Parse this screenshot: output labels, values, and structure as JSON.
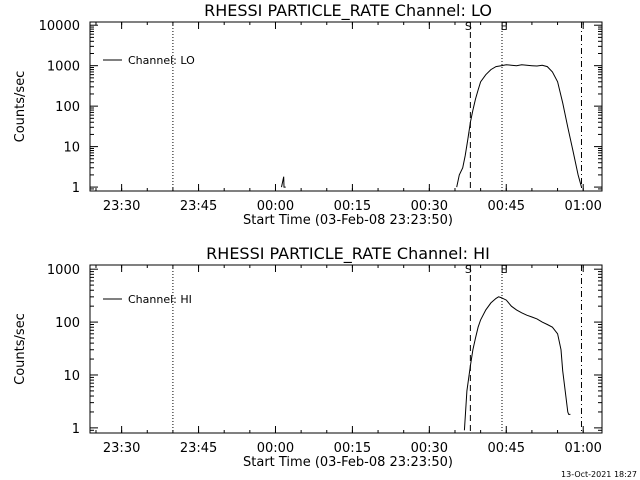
{
  "chart_data": [
    {
      "type": "line",
      "title": "RHESSI PARTICLE_RATE Channel: LO",
      "xlabel": "Start Time (03-Feb-08 23:23:50)",
      "ylabel": "Counts/sec",
      "yscale": "log",
      "ylim": [
        0.8,
        12000
      ],
      "xlim": [
        "23:23:50",
        "01:03:40"
      ],
      "x_ticks": [
        "23:30",
        "23:45",
        "00:00",
        "00:15",
        "00:30",
        "00:45",
        "01:00"
      ],
      "y_ticks": [
        "1",
        "10",
        "100",
        "1000",
        "10000"
      ],
      "grid": false,
      "legend": {
        "position": "top-left",
        "entries": [
          "Channel: LO"
        ]
      },
      "series": [
        {
          "name": "Channel: LO",
          "x": [
            "00:01:10",
            "00:01:36",
            "00:01:40",
            "00:02:00",
            "00:35:20",
            "00:35:50",
            "00:36:30",
            "00:37:00",
            "00:37:30",
            "00:38:00",
            "00:38:30",
            "00:39:00",
            "00:39:30",
            "00:40:00",
            "00:41:00",
            "00:42:00",
            "00:43:00",
            "00:44:00",
            "00:45:00",
            "00:46:00",
            "00:47:00",
            "00:48:00",
            "00:49:00",
            "00:50:00",
            "00:51:00",
            "00:52:00",
            "00:53:00",
            "00:54:00",
            "00:55:00",
            "00:56:00",
            "00:57:00",
            "00:58:00",
            "00:59:00",
            "00:59:40"
          ],
          "y": [
            1,
            1.8,
            1,
            1,
            1,
            2,
            3,
            6,
            15,
            40,
            80,
            150,
            250,
            400,
            600,
            800,
            950,
            1000,
            1050,
            1030,
            1000,
            1050,
            1020,
            1000,
            980,
            1020,
            950,
            700,
            400,
            120,
            30,
            8,
            2,
            1
          ]
        }
      ],
      "markers": [
        {
          "label": "",
          "x": "23:40:00",
          "style": "dotted"
        },
        {
          "label": "S",
          "x": "00:38:00",
          "style": "dashed"
        },
        {
          "label": "E",
          "x": "00:44:10",
          "style": "dotted"
        },
        {
          "label": "",
          "x": "00:59:40",
          "style": "dash-dot"
        }
      ]
    },
    {
      "type": "line",
      "title": "RHESSI PARTICLE_RATE Channel: HI",
      "xlabel": "Start Time (03-Feb-08 23:23:50)",
      "ylabel": "Counts/sec",
      "yscale": "log",
      "ylim": [
        0.8,
        1200
      ],
      "xlim": [
        "23:23:50",
        "01:03:40"
      ],
      "x_ticks": [
        "23:30",
        "23:45",
        "00:00",
        "00:15",
        "00:30",
        "00:45",
        "01:00"
      ],
      "y_ticks": [
        "1",
        "10",
        "100",
        "1000"
      ],
      "grid": false,
      "legend": {
        "position": "top-left",
        "entries": [
          "Channel: HI"
        ]
      },
      "series": [
        {
          "name": "Channel: HI",
          "x": [
            "00:36:50",
            "00:37:20",
            "00:38:00",
            "00:38:30",
            "00:39:00",
            "00:39:30",
            "00:40:00",
            "00:41:00",
            "00:42:00",
            "00:43:00",
            "00:43:30",
            "00:44:00",
            "00:45:00",
            "00:46:00",
            "00:47:00",
            "00:48:00",
            "00:49:00",
            "00:50:00",
            "00:51:00",
            "00:52:00",
            "00:53:00",
            "00:54:00",
            "00:55:00",
            "00:55:40",
            "00:56:00",
            "00:56:30",
            "00:57:00",
            "00:57:10",
            "00:57:30"
          ],
          "y": [
            0.9,
            5,
            15,
            30,
            50,
            80,
            110,
            170,
            230,
            280,
            300,
            290,
            260,
            200,
            170,
            150,
            135,
            125,
            115,
            100,
            90,
            80,
            60,
            30,
            12,
            5,
            2,
            1.8,
            1.8
          ]
        }
      ],
      "markers": [
        {
          "label": "",
          "x": "23:40:00",
          "style": "dotted"
        },
        {
          "label": "S",
          "x": "00:38:00",
          "style": "dashed"
        },
        {
          "label": "E",
          "x": "00:44:10",
          "style": "dotted"
        },
        {
          "label": "",
          "x": "00:59:40",
          "style": "dash-dot"
        }
      ]
    }
  ],
  "footer": {
    "timestamp": "13-Oct-2021 18:27"
  }
}
